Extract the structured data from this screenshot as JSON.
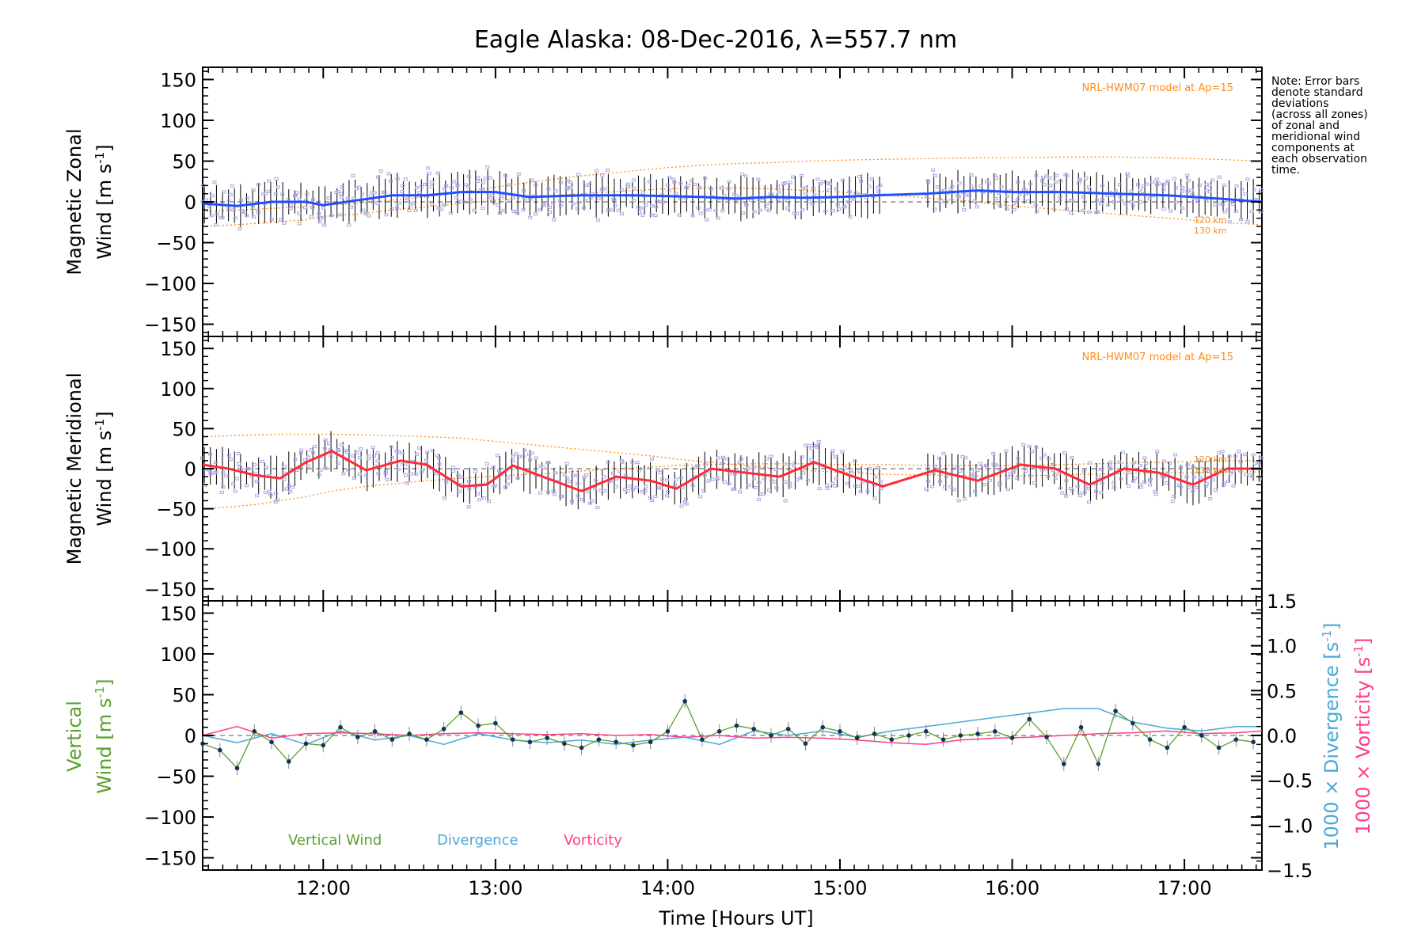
{
  "title": "Eagle Alaska: 08-Dec-2016, λ=557.7 nm",
  "note_lines": [
    "Note: Error bars",
    "denote standard",
    "deviations",
    "(across all zones)",
    "of zonal and",
    "meridional wind",
    "components at",
    "each observation",
    "time."
  ],
  "x_axis": {
    "label": "Time [Hours UT]",
    "range_hours": [
      11.3,
      17.45
    ],
    "ticks": [
      "12:00",
      "13:00",
      "14:00",
      "15:00",
      "16:00",
      "17:00"
    ]
  },
  "colors": {
    "zonal_wind": "#1f4fff",
    "meridional_wind": "#ff2a3a",
    "vertical_wind": "#5aa02c",
    "divergence": "#4aa8d8",
    "vorticity": "#ff3d8a",
    "model": "#ff8c1a",
    "zone_points": "#a9a6e0",
    "error_bars": "#000000"
  },
  "panels": {
    "zonal": {
      "ylabel_line1": "Magnetic Zonal",
      "ylabel_line2": "Wind [m s",
      "ylabel_sup": "-1",
      "ylabel_close": "]",
      "model_label": "NRL-HWM07 model at Ap=15",
      "alt_labels": [
        "120 km",
        "130 km"
      ]
    },
    "meridional": {
      "ylabel_line1": "Magnetic Meridional",
      "ylabel_line2": "Wind [m s",
      "ylabel_sup": "-1",
      "ylabel_close": "]",
      "model_label": "NRL-HWM07 model at Ap=15",
      "alt_labels": [
        "120 km",
        "130 km"
      ]
    },
    "vertical": {
      "ylabel_line1": "Vertical",
      "ylabel_line2": "Wind [m s",
      "ylabel_sup": "-1",
      "ylabel_close": "]",
      "right_label_div": "1000 × Divergence [s",
      "right_label_vort": "1000 × Vorticity [s",
      "right_sup": "-1",
      "right_close": "]",
      "legend": [
        "Vertical Wind",
        "Divergence",
        "Vorticity"
      ]
    }
  },
  "y_ticks_left": [
    "150",
    "100",
    "50",
    "0",
    "−50",
    "−100",
    "−150"
  ],
  "y_ticks_right": [
    "1.5",
    "1.0",
    "0.5",
    "0.0",
    "−0.5",
    "−1.0",
    "−1.5"
  ],
  "chart_data": [
    {
      "type": "line",
      "name": "zonal",
      "ylim": [
        -165,
        165
      ],
      "x_hours": [
        11.3,
        11.5,
        11.7,
        11.9,
        12.0,
        12.2,
        12.4,
        12.6,
        12.8,
        13.0,
        13.2,
        13.5,
        13.8,
        14.0,
        14.2,
        14.4,
        14.6,
        14.8,
        15.0,
        15.2,
        15.5,
        15.8,
        16.0,
        16.3,
        16.6,
        16.9,
        17.2,
        17.45
      ],
      "y": [
        -2,
        -5,
        0,
        0,
        -4,
        2,
        8,
        8,
        12,
        12,
        6,
        8,
        8,
        7,
        6,
        4,
        6,
        5,
        6,
        8,
        10,
        14,
        12,
        12,
        10,
        8,
        4,
        0
      ],
      "model_120km": [
        -12,
        -10,
        -8,
        -6,
        -4,
        -2,
        2,
        6,
        12,
        18,
        24,
        32,
        38,
        42,
        45,
        47,
        48,
        50,
        51,
        52,
        53,
        54,
        54,
        55,
        55,
        54,
        52,
        50
      ],
      "model_130km": [
        -30,
        -28,
        -25,
        -22,
        -18,
        -15,
        -10,
        -6,
        -2,
        2,
        6,
        10,
        14,
        16,
        17,
        17,
        16,
        14,
        12,
        9,
        5,
        0,
        -5,
        -10,
        -15,
        -20,
        -25,
        -28
      ]
    },
    {
      "type": "line",
      "name": "meridional",
      "ylim": [
        -165,
        165
      ],
      "x_hours": [
        11.3,
        11.45,
        11.6,
        11.75,
        11.9,
        12.05,
        12.25,
        12.45,
        12.6,
        12.8,
        12.95,
        13.1,
        13.3,
        13.5,
        13.7,
        13.9,
        14.05,
        14.25,
        14.45,
        14.65,
        14.85,
        15.05,
        15.25,
        15.55,
        15.8,
        16.05,
        16.25,
        16.45,
        16.65,
        16.85,
        17.05,
        17.25,
        17.45
      ],
      "y": [
        5,
        0,
        -8,
        -12,
        8,
        22,
        -2,
        10,
        5,
        -22,
        -20,
        4,
        -12,
        -28,
        -10,
        -15,
        -25,
        0,
        -5,
        -10,
        8,
        -8,
        -22,
        -2,
        -15,
        5,
        0,
        -20,
        0,
        -5,
        -20,
        0,
        0
      ],
      "model_120km": [
        -50,
        -48,
        -45,
        -40,
        -35,
        -28,
        -22,
        -18,
        -15,
        -12,
        -10,
        -8,
        -6,
        -3,
        0,
        2,
        4,
        5,
        6,
        6,
        6,
        5,
        5,
        4,
        4,
        4,
        5,
        6,
        7,
        8,
        9,
        10,
        10
      ],
      "model_130km": [
        40,
        41,
        42,
        43,
        43,
        43,
        42,
        41,
        40,
        38,
        35,
        32,
        28,
        24,
        20,
        16,
        12,
        8,
        4,
        0,
        -3,
        -5,
        -7,
        -8,
        -9,
        -9,
        -8,
        -7,
        -6,
        -5,
        -5,
        -4,
        -4
      ]
    },
    {
      "type": "line",
      "name": "vertical",
      "ylim": [
        -165,
        165
      ],
      "series": [
        {
          "name": "Vertical Wind",
          "x_hours": [
            11.3,
            11.4,
            11.5,
            11.6,
            11.7,
            11.8,
            11.9,
            12.0,
            12.1,
            12.2,
            12.3,
            12.4,
            12.5,
            12.6,
            12.7,
            12.8,
            12.9,
            13.0,
            13.1,
            13.2,
            13.3,
            13.4,
            13.5,
            13.6,
            13.7,
            13.8,
            13.9,
            14.0,
            14.1,
            14.2,
            14.3,
            14.4,
            14.5,
            14.6,
            14.7,
            14.8,
            14.9,
            15.0,
            15.1,
            15.2,
            15.3,
            15.4,
            15.5,
            15.6,
            15.7,
            15.8,
            15.9,
            16.0,
            16.1,
            16.2,
            16.3,
            16.4,
            16.5,
            16.6,
            16.7,
            16.8,
            16.9,
            17.0,
            17.1,
            17.2,
            17.3,
            17.4
          ],
          "y": [
            -10,
            -18,
            -40,
            5,
            -8,
            -32,
            -10,
            -12,
            10,
            -2,
            5,
            -5,
            2,
            -5,
            8,
            28,
            12,
            15,
            -5,
            -8,
            -3,
            -10,
            -15,
            -5,
            -8,
            -12,
            -8,
            5,
            42,
            -5,
            5,
            12,
            8,
            0,
            8,
            -10,
            10,
            5,
            -3,
            2,
            -5,
            0,
            5,
            -5,
            0,
            2,
            5,
            -3,
            20,
            -2,
            -35,
            10,
            -35,
            30,
            15,
            -5,
            -15,
            10,
            0,
            -15,
            -5,
            -8
          ]
        },
        {
          "name": "Divergence",
          "x_hours": [
            11.3,
            11.5,
            11.7,
            11.9,
            12.1,
            12.3,
            12.5,
            12.7,
            12.9,
            13.1,
            13.3,
            13.5,
            13.7,
            13.9,
            14.1,
            14.3,
            14.5,
            14.7,
            14.9,
            15.1,
            15.3,
            15.5,
            15.7,
            15.9,
            16.1,
            16.3,
            16.5,
            16.7,
            16.9,
            17.1,
            17.3,
            17.45
          ],
          "y": [
            0.0,
            -0.08,
            0.02,
            -0.1,
            0.05,
            -0.05,
            0.0,
            -0.1,
            0.02,
            -0.05,
            -0.08,
            -0.05,
            -0.1,
            -0.05,
            -0.02,
            -0.1,
            0.05,
            0.0,
            0.05,
            -0.02,
            0.05,
            0.1,
            0.15,
            0.2,
            0.25,
            0.3,
            0.3,
            0.15,
            0.08,
            0.05,
            0.1,
            0.1
          ]
        },
        {
          "name": "Vorticity",
          "x_hours": [
            11.3,
            11.5,
            11.7,
            11.9,
            12.1,
            12.3,
            12.5,
            12.7,
            12.9,
            13.1,
            13.3,
            13.5,
            13.7,
            13.9,
            14.1,
            14.3,
            14.5,
            14.7,
            14.9,
            15.1,
            15.3,
            15.5,
            15.7,
            15.9,
            16.1,
            16.3,
            16.5,
            16.7,
            16.9,
            17.1,
            17.3,
            17.45
          ],
          "y": [
            0.0,
            0.1,
            -0.03,
            0.02,
            0.03,
            0.02,
            0.0,
            0.02,
            0.03,
            0.02,
            0.01,
            0.02,
            0.0,
            0.01,
            -0.02,
            0.0,
            -0.03,
            -0.02,
            -0.03,
            -0.05,
            -0.08,
            -0.1,
            -0.05,
            -0.03,
            -0.02,
            0.0,
            0.02,
            0.03,
            0.05,
            0.02,
            0.03,
            0.05
          ]
        }
      ],
      "ylim_right": [
        -1.5,
        1.5
      ]
    }
  ]
}
